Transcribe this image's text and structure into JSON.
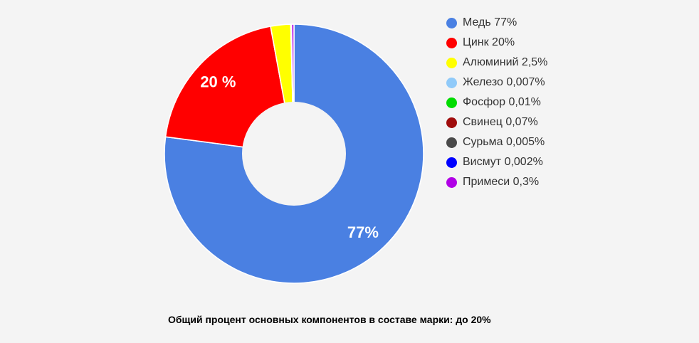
{
  "page": {
    "background": "#F4F4F4"
  },
  "caption": "Общий процент основных компонентов в составе марки: до 20%",
  "chart_data": {
    "type": "pie",
    "subtype": "donut",
    "pie_hole_ratio": 0.4,
    "legend_position": "right",
    "units": "%",
    "title": "",
    "slices": [
      {
        "label": "Медь",
        "value": 77,
        "legend_text": "Медь 77%",
        "color": "#4A80E2",
        "slice_label": "77%"
      },
      {
        "label": "Цинк",
        "value": 20,
        "legend_text": "Цинк 20%",
        "color": "#FF0000",
        "slice_label": "20 %"
      },
      {
        "label": "Алюминий",
        "value": 2.5,
        "legend_text": "Алюминий 2,5%",
        "color": "#FFFF00",
        "slice_label": null
      },
      {
        "label": "Железо",
        "value": 0.007,
        "legend_text": "Железо 0,007%",
        "color": "#90CAF9",
        "slice_label": null
      },
      {
        "label": "Фосфор",
        "value": 0.01,
        "legend_text": "Фосфор 0,01%",
        "color": "#00DC00",
        "slice_label": null
      },
      {
        "label": "Свинец",
        "value": 0.07,
        "legend_text": "Свинец 0,07%",
        "color": "#A00C0C",
        "slice_label": null
      },
      {
        "label": "Сурьма",
        "value": 0.005,
        "legend_text": "Сурьма 0,005%",
        "color": "#4A4A4A",
        "slice_label": null
      },
      {
        "label": "Висмут",
        "value": 0.002,
        "legend_text": "Висмут 0,002%",
        "color": "#0000FF",
        "slice_label": null
      },
      {
        "label": "Примеси",
        "value": 0.3,
        "legend_text": "Примеси 0,3%",
        "color": "#B000E6",
        "slice_label": null
      }
    ],
    "slice_label_color": "#FFFFFF",
    "slice_border_color": "#FFFFFF",
    "legend_text_color": "#333333",
    "caption_color": "#000000"
  }
}
